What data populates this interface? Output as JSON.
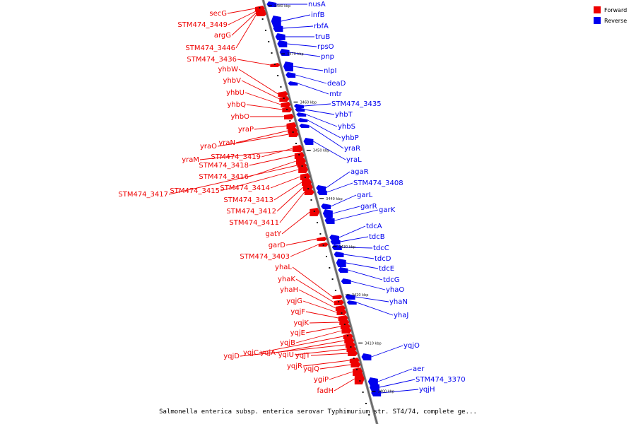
{
  "legend": {
    "forward_label": "Forward",
    "reverse_label": "Reverse",
    "forward_color": "#ee0000",
    "reverse_color": "#0000ee"
  },
  "caption": "Salmonella enterica subsp. enterica serovar Typhimurium str. ST4/74, complete ge...",
  "ticks": [
    {
      "label": "3480 kbp",
      "pos": 3480
    },
    {
      "label": "3470 kbp",
      "pos": 3470
    },
    {
      "label": "3460 kbp",
      "pos": 3460
    },
    {
      "label": "3450 kbp",
      "pos": 3450
    },
    {
      "label": "3440 kbp",
      "pos": 3440
    },
    {
      "label": "3430 kbp",
      "pos": 3430
    },
    {
      "label": "3420 kbp",
      "pos": 3420
    },
    {
      "label": "3410 kbp",
      "pos": 3410
    },
    {
      "label": "3400 kbp",
      "pos": 3400
    }
  ],
  "forward_genes": [
    "secG",
    "STM474_3449",
    "argG",
    "STM474_3446",
    "STM474_3436",
    "yhbW",
    "yhbV",
    "yhbU",
    "yhbQ",
    "yhbO",
    "yraP",
    "yraN",
    "yraO",
    "STM474_3419",
    "yraM",
    "STM474_3418",
    "STM474_3416",
    "STM474_3417",
    "STM474_3415",
    "STM474_3414",
    "STM474_3413",
    "STM474_3412",
    "STM474_3411",
    "gatY",
    "garD",
    "STM474_3403",
    "yhaL",
    "yhaK",
    "yhaH",
    "yqjG",
    "yqjF",
    "yqjK",
    "yqjE",
    "yqjB",
    "yqjC",
    "yqjA",
    "yqjD",
    "yqiU",
    "yqjT",
    "yqjR",
    "yqjQ",
    "ygiP",
    "fadH"
  ],
  "reverse_genes": [
    "nusA",
    "infB",
    "rbfA",
    "truB",
    "rpsO",
    "pnp",
    "nlpI",
    "deaD",
    "mtr",
    "STM474_3435",
    "yhbT",
    "yhbS",
    "yhbP",
    "yraR",
    "yraL",
    "agaR",
    "STM474_3408",
    "garL",
    "garR",
    "garK",
    "tdcA",
    "tdcB",
    "tdcC",
    "tdcD",
    "tdcE",
    "tdcG",
    "yhaO",
    "yhaN",
    "yhaJ",
    "yqjO",
    "aer",
    "STM474_3370",
    "yqjH"
  ]
}
